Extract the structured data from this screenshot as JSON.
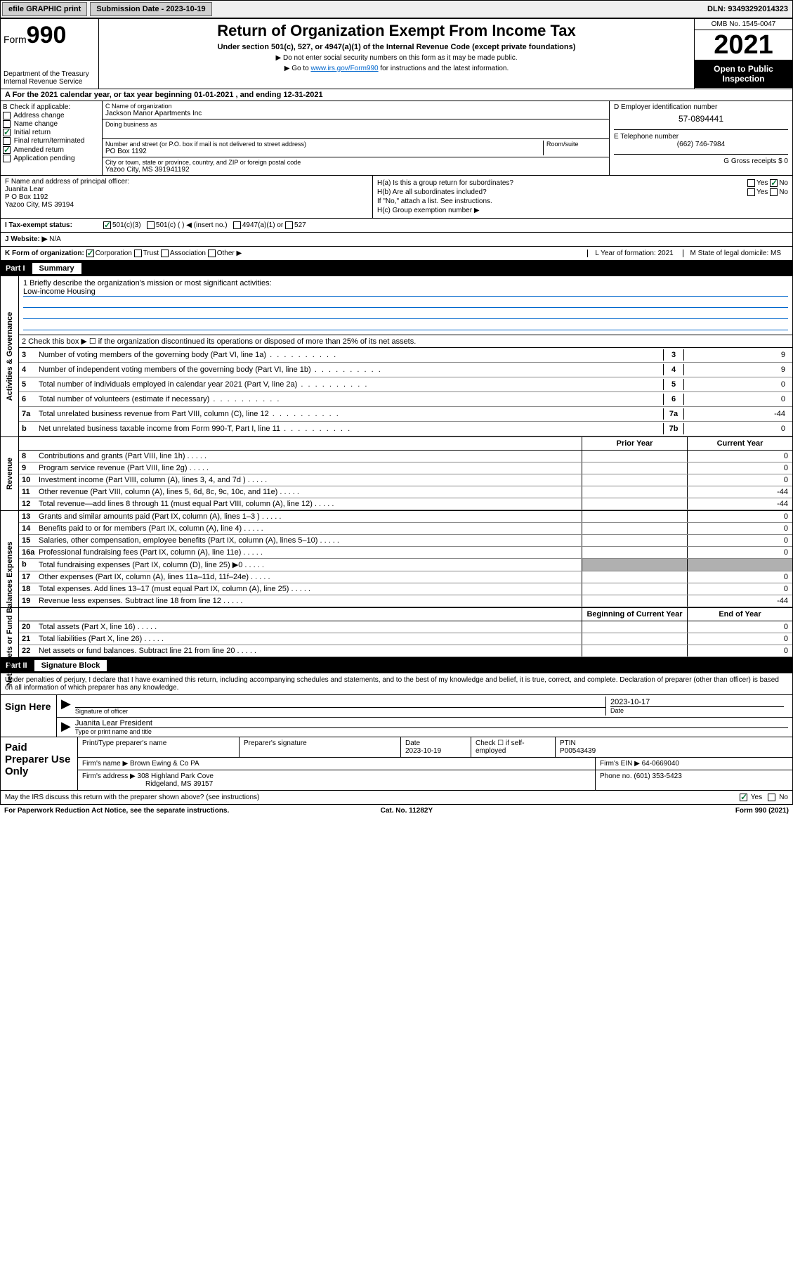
{
  "topbar": {
    "efile": "efile GRAPHIC print",
    "submission_label": "Submission Date - 2023-10-19",
    "dln": "DLN: 93493292014323"
  },
  "header": {
    "form_label": "Form",
    "form_number": "990",
    "dept": "Department of the Treasury",
    "irs": "Internal Revenue Service",
    "title": "Return of Organization Exempt From Income Tax",
    "subtitle": "Under section 501(c), 527, or 4947(a)(1) of the Internal Revenue Code (except private foundations)",
    "note1": "▶ Do not enter social security numbers on this form as it may be made public.",
    "note2_pre": "▶ Go to ",
    "note2_link": "www.irs.gov/Form990",
    "note2_post": " for instructions and the latest information.",
    "omb": "OMB No. 1545-0047",
    "year": "2021",
    "inspect": "Open to Public Inspection"
  },
  "period": {
    "text": "A For the 2021 calendar year, or tax year beginning 01-01-2021   , and ending 12-31-2021"
  },
  "boxB": {
    "label": "B Check if applicable:",
    "items": [
      "Address change",
      "Name change",
      "Initial return",
      "Final return/terminated",
      "Amended return",
      "Application pending"
    ],
    "checked": [
      false,
      false,
      true,
      false,
      true,
      false
    ]
  },
  "boxC": {
    "name_label": "C Name of organization",
    "name": "Jackson Manor Apartments Inc",
    "dba_label": "Doing business as",
    "dba": "",
    "addr_label": "Number and street (or P.O. box if mail is not delivered to street address)",
    "room_label": "Room/suite",
    "addr": "PO Box 1192",
    "city_label": "City or town, state or province, country, and ZIP or foreign postal code",
    "city": "Yazoo City, MS  391941192"
  },
  "boxD": {
    "label": "D Employer identification number",
    "ein": "57-0894441"
  },
  "boxE": {
    "label": "E Telephone number",
    "phone": "(662) 746-7984"
  },
  "boxG": {
    "label": "G Gross receipts $ 0"
  },
  "boxF": {
    "label": "F Name and address of principal officer:",
    "name": "Juanita Lear",
    "addr1": "P O Box 1192",
    "addr2": "Yazoo City, MS  39194"
  },
  "boxH": {
    "ha": "H(a)  Is this a group return for subordinates?",
    "ha_yes": "Yes",
    "ha_no": "No",
    "hb": "H(b)  Are all subordinates included?",
    "hb_note": "If \"No,\" attach a list. See instructions.",
    "hc": "H(c)  Group exemption number ▶"
  },
  "boxI": {
    "label": "I   Tax-exempt status:",
    "opt1": "501(c)(3)",
    "opt2": "501(c) (  ) ◀ (insert no.)",
    "opt3": "4947(a)(1) or",
    "opt4": "527"
  },
  "boxJ": {
    "label": "J   Website: ▶",
    "value": "N/A"
  },
  "boxK": {
    "label": "K Form of organization:",
    "opts": [
      "Corporation",
      "Trust",
      "Association",
      "Other ▶"
    ],
    "L": "L Year of formation: 2021",
    "M": "M State of legal domicile: MS"
  },
  "part1": {
    "hdr": "Part I",
    "title": "Summary",
    "mission_label": "1   Briefly describe the organization's mission or most significant activities:",
    "mission": "Low-income Housing",
    "line2": "2   Check this box ▶ ☐  if the organization discontinued its operations or disposed of more than 25% of its net assets.",
    "lines_gov": [
      {
        "n": "3",
        "t": "Number of voting members of the governing body (Part VI, line 1a)",
        "b": "3",
        "v": "9"
      },
      {
        "n": "4",
        "t": "Number of independent voting members of the governing body (Part VI, line 1b)",
        "b": "4",
        "v": "9"
      },
      {
        "n": "5",
        "t": "Total number of individuals employed in calendar year 2021 (Part V, line 2a)",
        "b": "5",
        "v": "0"
      },
      {
        "n": "6",
        "t": "Total number of volunteers (estimate if necessary)",
        "b": "6",
        "v": "0"
      },
      {
        "n": "7a",
        "t": "Total unrelated business revenue from Part VIII, column (C), line 12",
        "b": "7a",
        "v": "-44"
      },
      {
        "n": "b",
        "t": "Net unrelated business taxable income from Form 990-T, Part I, line 11",
        "b": "7b",
        "v": "0"
      }
    ],
    "col_prior": "Prior Year",
    "col_current": "Current Year",
    "revenue": [
      {
        "n": "8",
        "t": "Contributions and grants (Part VIII, line 1h)",
        "p": "",
        "c": "0"
      },
      {
        "n": "9",
        "t": "Program service revenue (Part VIII, line 2g)",
        "p": "",
        "c": "0"
      },
      {
        "n": "10",
        "t": "Investment income (Part VIII, column (A), lines 3, 4, and 7d )",
        "p": "",
        "c": "0"
      },
      {
        "n": "11",
        "t": "Other revenue (Part VIII, column (A), lines 5, 6d, 8c, 9c, 10c, and 11e)",
        "p": "",
        "c": "-44"
      },
      {
        "n": "12",
        "t": "Total revenue—add lines 8 through 11 (must equal Part VIII, column (A), line 12)",
        "p": "",
        "c": "-44"
      }
    ],
    "expenses": [
      {
        "n": "13",
        "t": "Grants and similar amounts paid (Part IX, column (A), lines 1–3 )",
        "p": "",
        "c": "0"
      },
      {
        "n": "14",
        "t": "Benefits paid to or for members (Part IX, column (A), line 4)",
        "p": "",
        "c": "0"
      },
      {
        "n": "15",
        "t": "Salaries, other compensation, employee benefits (Part IX, column (A), lines 5–10)",
        "p": "",
        "c": "0"
      },
      {
        "n": "16a",
        "t": "Professional fundraising fees (Part IX, column (A), line 11e)",
        "p": "",
        "c": "0"
      },
      {
        "n": "b",
        "t": "Total fundraising expenses (Part IX, column (D), line 25) ▶0",
        "p": "shade",
        "c": "shade"
      },
      {
        "n": "17",
        "t": "Other expenses (Part IX, column (A), lines 11a–11d, 11f–24e)",
        "p": "",
        "c": "0"
      },
      {
        "n": "18",
        "t": "Total expenses. Add lines 13–17 (must equal Part IX, column (A), line 25)",
        "p": "",
        "c": "0"
      },
      {
        "n": "19",
        "t": "Revenue less expenses. Subtract line 18 from line 12",
        "p": "",
        "c": "-44"
      }
    ],
    "col_begin": "Beginning of Current Year",
    "col_end": "End of Year",
    "netassets": [
      {
        "n": "20",
        "t": "Total assets (Part X, line 16)",
        "p": "",
        "c": "0"
      },
      {
        "n": "21",
        "t": "Total liabilities (Part X, line 26)",
        "p": "",
        "c": "0"
      },
      {
        "n": "22",
        "t": "Net assets or fund balances. Subtract line 21 from line 20",
        "p": "",
        "c": "0"
      }
    ]
  },
  "vlabels": {
    "gov": "Activities & Governance",
    "rev": "Revenue",
    "exp": "Expenses",
    "net": "Net Assets or Fund Balances"
  },
  "part2": {
    "hdr": "Part II",
    "title": "Signature Block",
    "intro": "Under penalties of perjury, I declare that I have examined this return, including accompanying schedules and statements, and to the best of my knowledge and belief, it is true, correct, and complete. Declaration of preparer (other than officer) is based on all information of which preparer has any knowledge.",
    "sign_here": "Sign Here",
    "sig_officer": "Signature of officer",
    "sig_date": "2023-10-17",
    "date_label": "Date",
    "officer_name": "Juanita Lear  President",
    "officer_sub": "Type or print name and title",
    "paid": "Paid Preparer Use Only",
    "prep_name_label": "Print/Type preparer's name",
    "prep_sig_label": "Preparer's signature",
    "prep_date_label": "Date",
    "prep_date": "2023-10-19",
    "check_self": "Check ☐ if self-employed",
    "ptin_label": "PTIN",
    "ptin": "P00543439",
    "firm_name_label": "Firm's name    ▶",
    "firm_name": "Brown Ewing & Co PA",
    "firm_ein_label": "Firm's EIN ▶",
    "firm_ein": "64-0669040",
    "firm_addr_label": "Firm's address ▶",
    "firm_addr1": "308 Highland Park Cove",
    "firm_addr2": "Ridgeland, MS  39157",
    "phone_label": "Phone no.",
    "phone": "(601) 353-5423",
    "discuss": "May the IRS discuss this return with the preparer shown above? (see instructions)",
    "yes": "Yes",
    "no": "No"
  },
  "footer": {
    "pra": "For Paperwork Reduction Act Notice, see the separate instructions.",
    "cat": "Cat. No. 11282Y",
    "form": "Form 990 (2021)"
  },
  "colors": {
    "link": "#0066cc",
    "check_green": "#0a7a3a",
    "shade": "#b0b0b0"
  }
}
